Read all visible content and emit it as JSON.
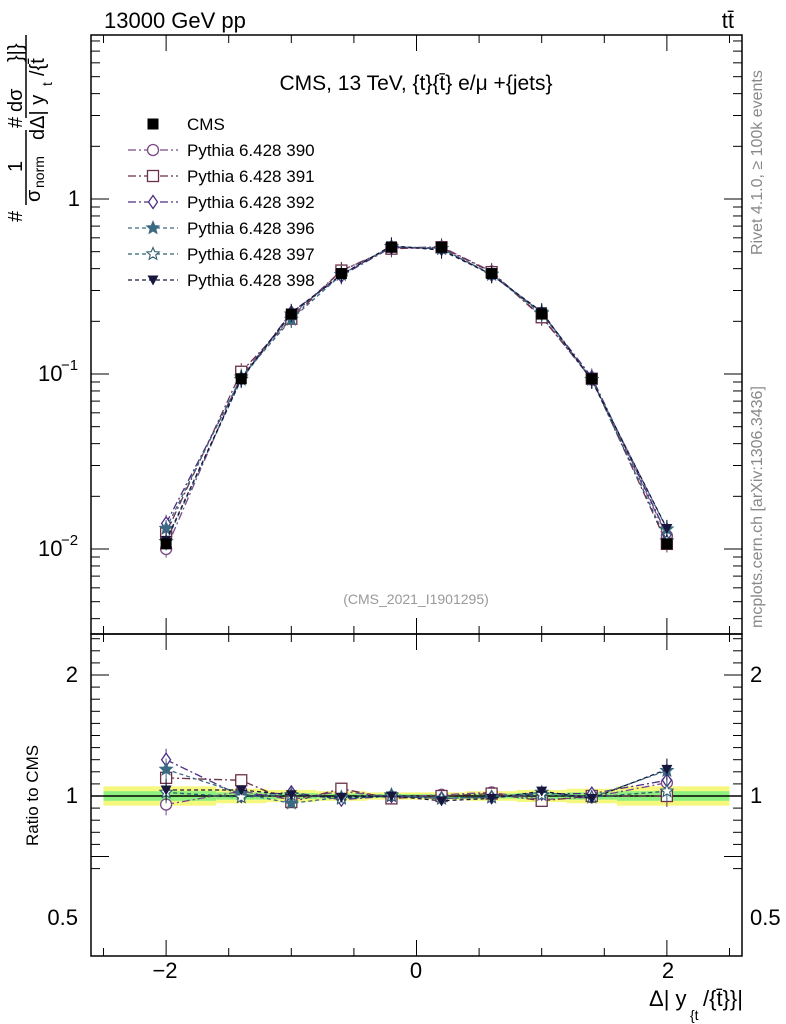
{
  "header": {
    "beam": "13000 GeV pp",
    "process": "tt̄",
    "title": "CMS, 13 TeV, {t}{t̄} e/μ +{jets}",
    "analysis_tag": "(CMS_2021_I1901295)",
    "rivet_label": "Rivet 4.1.0, ≥ 100k events",
    "source_label": "mcplots.cern.ch [arXiv:1306.3436]"
  },
  "axes": {
    "top_ylabel": "#frac{1}{σ_norm} # frac{dσ}{dΔ| y_{t}/{t̄}|}",
    "top_ylabel_parts": [
      "#",
      "1",
      "σ",
      "norm",
      "#",
      "dσ",
      "dΔ| y",
      "t",
      "/{t̄",
      "}|}"
    ],
    "bottom_ylabel": "Ratio to CMS",
    "xlabel_main": "Δ| y",
    "xlabel_sub": "{t",
    "xlabel_tail": "/{t̄}}|",
    "x_ticklabels": [
      "−2",
      "0",
      "2"
    ],
    "top_ticklabels": [
      "1",
      "10",
      "−1",
      "10",
      "−2"
    ],
    "ratio_ticklabels": [
      "2",
      "1",
      "0.5"
    ]
  },
  "chart_data": {
    "type": "line",
    "title": "CMS, 13 TeV, {t}{t̄} e/μ +{jets}",
    "xlim": [
      -2.6,
      2.6
    ],
    "ylim": [
      0.003,
      10
    ],
    "yscale": "log",
    "ratio_ylim": [
      0.4,
      2.4
    ],
    "x": [
      -2.0,
      -1.4,
      -1.0,
      -0.6,
      -0.2,
      0.2,
      0.6,
      1.0,
      1.4,
      2.0
    ],
    "bin_edges": [
      -2.6,
      -1.6,
      -1.2,
      -0.8,
      -0.4,
      0.0,
      0.4,
      0.8,
      1.2,
      1.6,
      2.6
    ],
    "legend_position": "top-left",
    "data": {
      "name": "CMS",
      "values": [
        0.0107,
        0.094,
        0.22,
        0.375,
        0.53,
        0.53,
        0.375,
        0.22,
        0.094,
        0.0107
      ],
      "ratio_band_inner": [
        0.04,
        0.03,
        0.025,
        0.02,
        0.015,
        0.015,
        0.02,
        0.025,
        0.03,
        0.04
      ],
      "ratio_band_outer": [
        0.08,
        0.06,
        0.05,
        0.04,
        0.03,
        0.03,
        0.04,
        0.05,
        0.06,
        0.08
      ]
    },
    "series": [
      {
        "name": "Pythia 6.428 390",
        "color": "#7b4a86",
        "marker": "circle-open",
        "dash": "8,3,2,3",
        "values": [
          0.01,
          0.098,
          0.213,
          0.39,
          0.525,
          0.533,
          0.385,
          0.213,
          0.093,
          0.0119
        ],
        "ratio": [
          0.93,
          1.04,
          0.97,
          1.04,
          0.99,
          1.01,
          1.03,
          0.97,
          0.99,
          1.11
        ]
      },
      {
        "name": "Pythia 6.428 391",
        "color": "#6a3148",
        "marker": "square-open",
        "dash": "8,3,2,3",
        "values": [
          0.0123,
          0.103,
          0.207,
          0.39,
          0.52,
          0.53,
          0.382,
          0.211,
          0.094,
          0.0107
        ],
        "ratio": [
          1.15,
          1.13,
          0.95,
          1.06,
          0.98,
          1.0,
          1.02,
          0.96,
          1.0,
          1.0
        ]
      },
      {
        "name": "Pythia 6.428 392",
        "color": "#4e2f84",
        "marker": "diamond-open",
        "dash": "8,3,2,3",
        "values": [
          0.014,
          0.094,
          0.225,
          0.364,
          0.53,
          0.52,
          0.37,
          0.223,
          0.096,
          0.0121
        ],
        "ratio": [
          1.3,
          1.0,
          1.03,
          0.97,
          1.0,
          0.98,
          0.99,
          1.02,
          1.02,
          1.13
        ]
      },
      {
        "name": "Pythia 6.428 396",
        "color": "#3b6a82",
        "marker": "star-filled",
        "dash": "4,3",
        "values": [
          0.0131,
          0.096,
          0.205,
          0.37,
          0.535,
          0.52,
          0.372,
          0.225,
          0.093,
          0.013
        ],
        "ratio": [
          1.22,
          1.02,
          0.94,
          0.99,
          1.01,
          0.98,
          0.99,
          1.03,
          0.99,
          1.21
        ]
      },
      {
        "name": "Pythia 6.428 397",
        "color": "#2e6070",
        "marker": "star-open",
        "dash": "4,3",
        "values": [
          0.011,
          0.093,
          0.22,
          0.37,
          0.535,
          0.52,
          0.37,
          0.222,
          0.093,
          0.0111
        ],
        "ratio": [
          1.03,
          0.99,
          1.01,
          0.98,
          1.0,
          0.98,
          0.99,
          1.01,
          0.99,
          1.04
        ]
      },
      {
        "name": "Pythia 6.428 398",
        "color": "#17173d",
        "marker": "triangle-down-filled",
        "dash": "4,3",
        "values": [
          0.0112,
          0.094,
          0.223,
          0.37,
          0.54,
          0.51,
          0.37,
          0.227,
          0.092,
          0.0131
        ],
        "ratio": [
          1.05,
          1.05,
          1.01,
          0.99,
          1.0,
          0.96,
          0.98,
          1.04,
          0.98,
          1.22
        ]
      }
    ]
  }
}
